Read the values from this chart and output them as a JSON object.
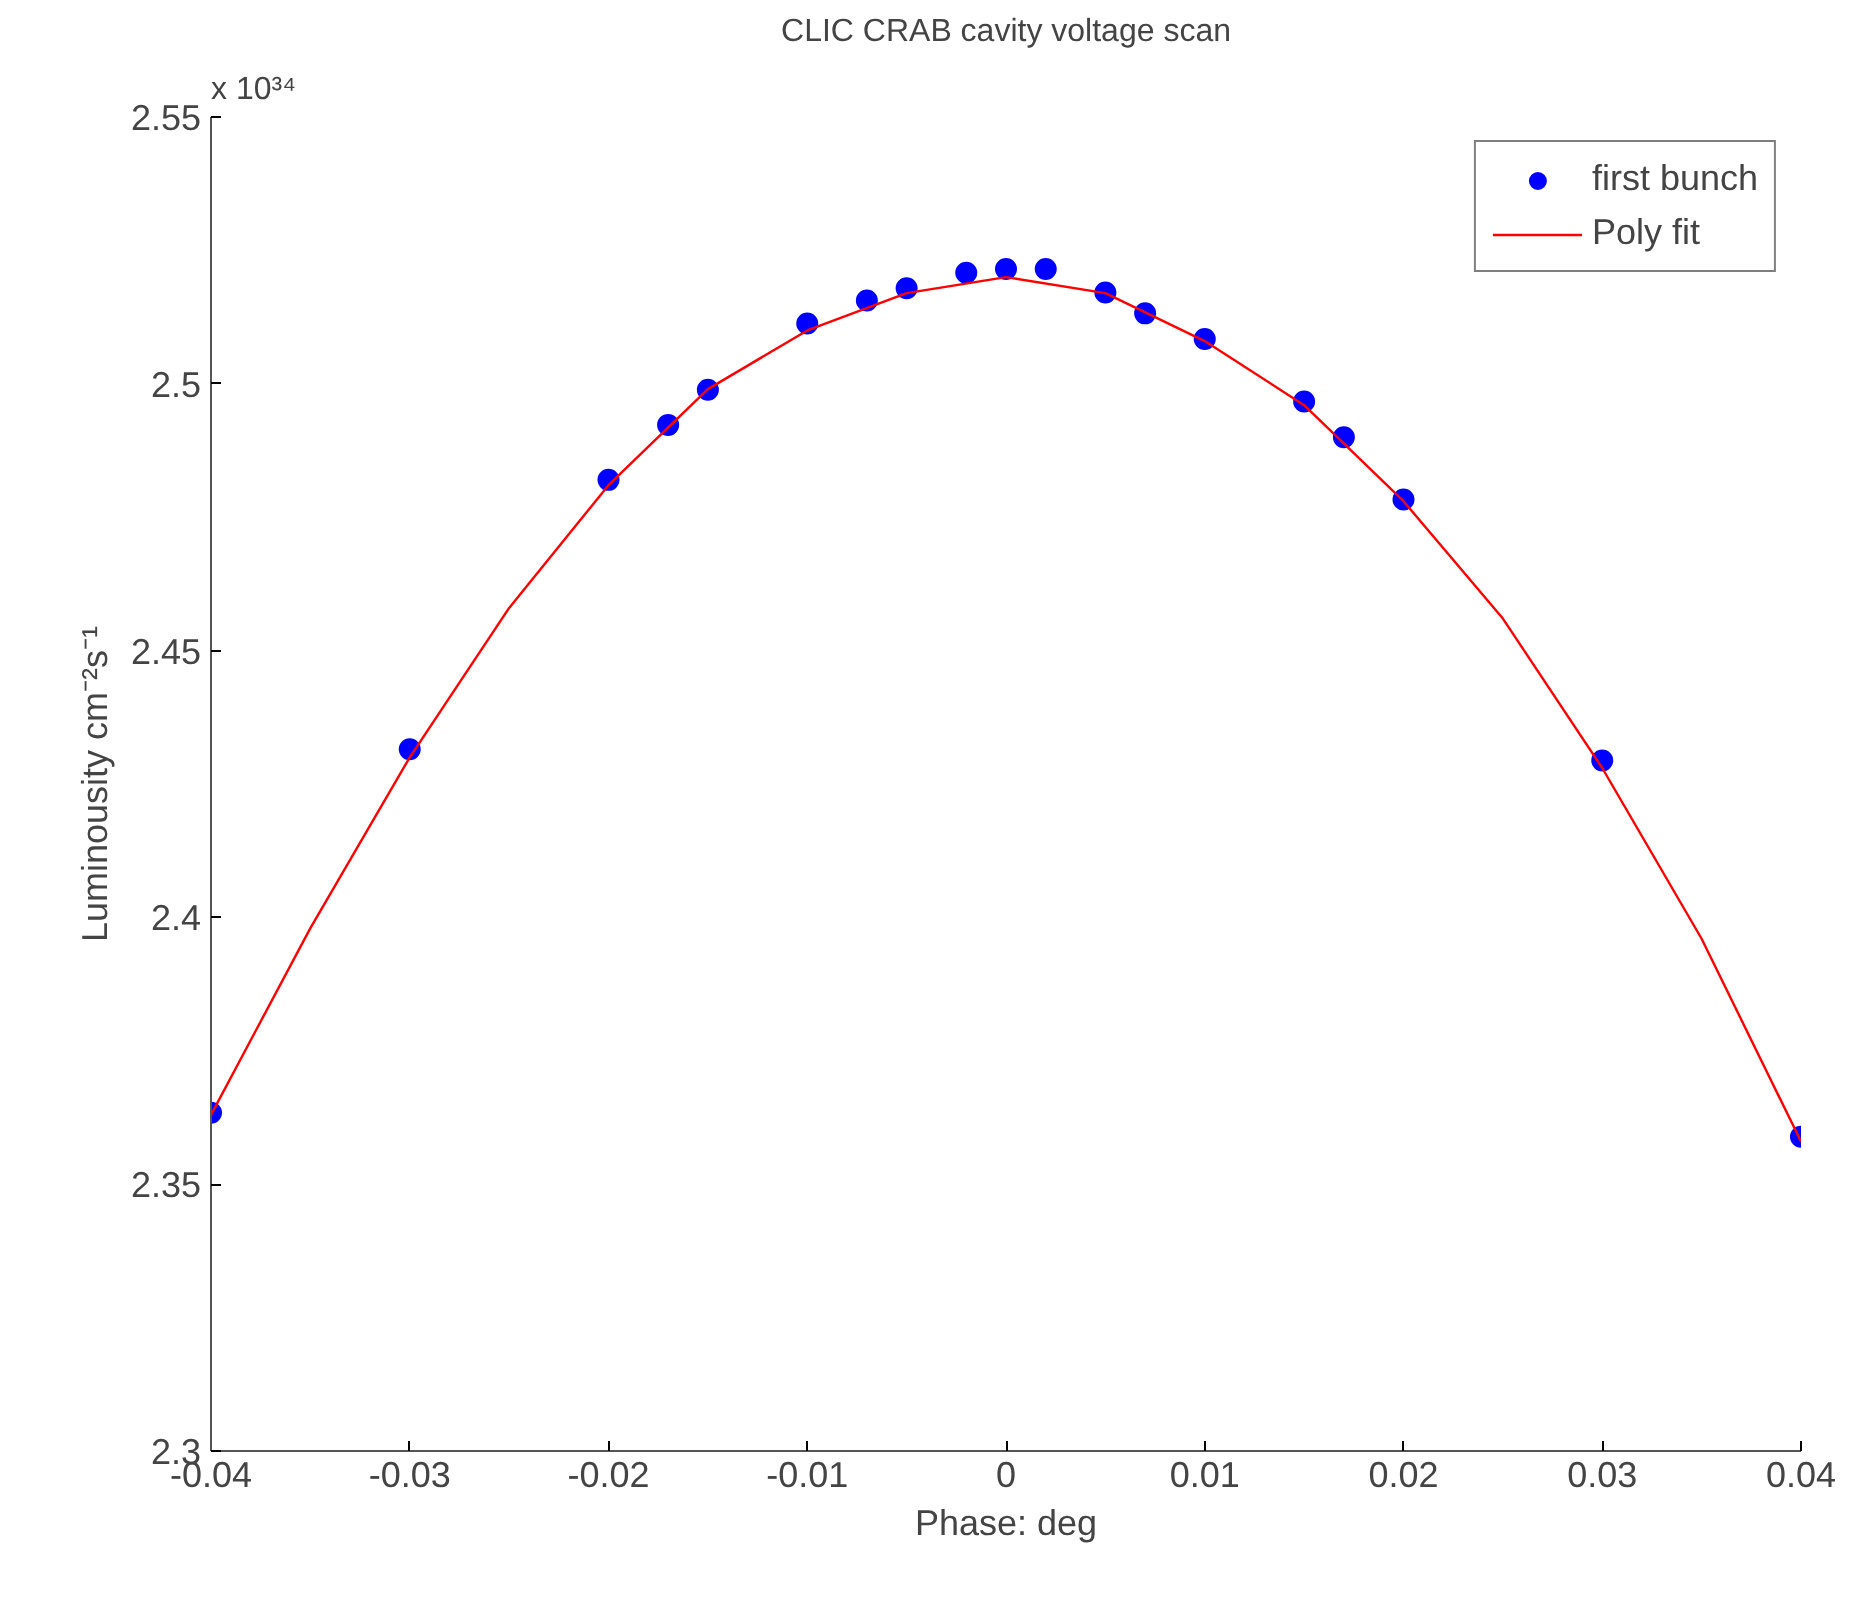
{
  "chart_data": {
    "type": "scatter",
    "title": "CLIC CRAB cavity voltage scan",
    "xlabel": "Phase: deg",
    "ylabel": "Luminousity cm⁻²s⁻¹",
    "annotations": [
      "x 10³⁴"
    ],
    "xlim": [
      -0.04,
      0.04
    ],
    "xticks": [
      -0.04,
      -0.03,
      -0.02,
      -0.01,
      0,
      0.01,
      0.02,
      0.03,
      0.04
    ],
    "ylim": [
      2.3,
      2.55
    ],
    "yticks": [
      2.3,
      2.35,
      2.4,
      2.45,
      2.5,
      2.55
    ],
    "grid": false,
    "legend": "top right",
    "series": [
      {
        "name": "first bunch",
        "marker": "circle",
        "color": "#0000ff",
        "x": [
          -0.04,
          -0.03,
          -0.02,
          -0.017,
          -0.015,
          -0.01,
          -0.007,
          -0.005,
          -0.002,
          0,
          0.002,
          0.005,
          0.007,
          0.01,
          0.015,
          0.017,
          0.02,
          0.03,
          0.04
        ],
        "values": [
          2.3634,
          2.4315,
          2.482,
          2.4923,
          2.4989,
          2.5113,
          2.5156,
          2.5179,
          2.5208,
          2.5215,
          2.5215,
          2.5171,
          2.5132,
          2.5084,
          2.4967,
          2.49,
          2.4783,
          2.4294,
          2.3589
        ]
      },
      {
        "name": "Poly fit",
        "type": "line",
        "color": "#ff0000",
        "line_style": "solid",
        "x": [
          -0.04,
          -0.035,
          -0.03,
          -0.025,
          -0.02,
          -0.015,
          -0.01,
          -0.005,
          0,
          0.005,
          0.01,
          0.015,
          0.02,
          0.025,
          0.03,
          0.035,
          0.04
        ],
        "values": [
          2.363,
          2.398,
          2.43,
          2.458,
          2.481,
          2.499,
          2.51,
          2.517,
          2.52,
          2.517,
          2.508,
          2.496,
          2.478,
          2.456,
          2.428,
          2.396,
          2.358
        ]
      }
    ]
  }
}
